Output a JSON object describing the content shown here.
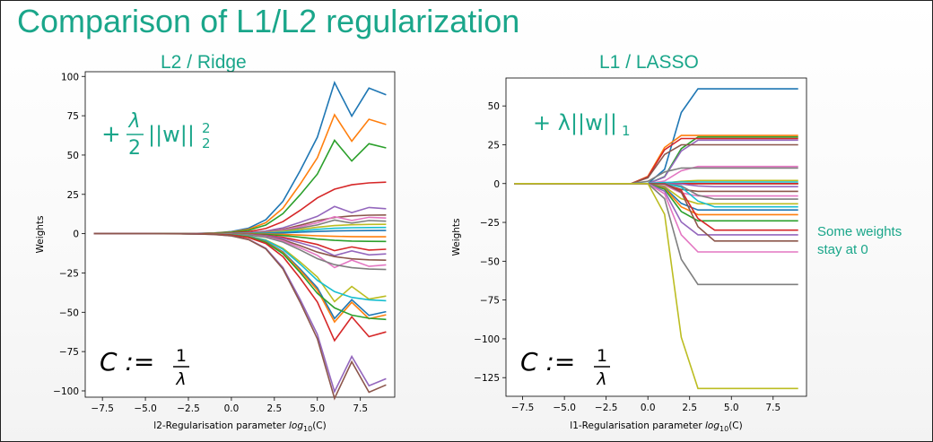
{
  "slide": {
    "title": "Comparison of L1/L2 regularization",
    "side_note_lines": [
      "Some weights",
      "stay at 0"
    ]
  },
  "colors": {
    "title": "#1aa68a",
    "formula": "#1aa68a",
    "series": [
      "#1f77b4",
      "#ff7f0e",
      "#2ca02c",
      "#d62728",
      "#9467bd",
      "#8c564b",
      "#e377c2",
      "#7f7f7f",
      "#bcbd22",
      "#17becf"
    ]
  },
  "chart_data": [
    {
      "type": "line",
      "panel_title": "L2 / Ridge",
      "formula": "+ λ/2 ||w||₂²",
      "formula_main": "+",
      "formula_frac_num": "λ",
      "formula_frac_den": "2",
      "formula_norm": "||w||",
      "formula_sup": "2",
      "formula_sub": "2",
      "annotation": "C := 1/λ",
      "annotation_lhs": "C :=",
      "annotation_num": "1",
      "annotation_den": "λ",
      "xlabel": "l2-Regularisation parameter log10(C)",
      "xlabel_prefix": "l2-Regularisation parameter ",
      "xlabel_log": "log",
      "xlabel_sub": "10",
      "xlabel_suffix": "(C)",
      "ylabel": "Weights",
      "xlim": [
        -8.5,
        9.5
      ],
      "ylim": [
        -104,
        103
      ],
      "xticks": [
        -7.5,
        -5.0,
        -2.5,
        0.0,
        2.5,
        5.0,
        7.5
      ],
      "xtick_labels": [
        "−7.5",
        "−5.0",
        "−2.5",
        "0.0",
        "2.5",
        "5.0",
        "7.5"
      ],
      "yticks": [
        100,
        75,
        50,
        25,
        0,
        -25,
        -50,
        -75,
        -100
      ],
      "ytick_labels": [
        "100",
        "75",
        "50",
        "25",
        "0",
        "−25",
        "−50",
        "−75",
        "−100"
      ],
      "grid": false,
      "x": [
        -8,
        -7,
        -6,
        -5,
        -4,
        -3,
        -2,
        -1,
        0,
        1,
        2,
        3,
        4,
        5,
        6,
        7,
        8,
        9
      ],
      "series_finals": [
        89,
        70,
        55,
        33,
        16,
        12,
        10,
        8,
        6,
        4,
        2,
        -2,
        -5,
        -10,
        -13,
        -17,
        -20,
        -23,
        -40,
        -43,
        -50,
        -52,
        -55,
        -63,
        -93,
        -97
      ],
      "series_zigzag": [
        1,
        1,
        1,
        0,
        1,
        0,
        1,
        1,
        0,
        1,
        0,
        1,
        0,
        1,
        1,
        0,
        1,
        0,
        1,
        0,
        1,
        1,
        0,
        1,
        1,
        1
      ]
    },
    {
      "type": "line",
      "panel_title": "L1 / LASSO",
      "formula": "+ λ||w||₁",
      "formula_main": "+ λ||w||",
      "formula_sub": "1",
      "annotation": "C := 1/λ",
      "annotation_lhs": "C :=",
      "annotation_num": "1",
      "annotation_den": "λ",
      "xlabel": "l1-Regularisation parameter log10(C)",
      "xlabel_prefix": "l1-Regularisation parameter ",
      "xlabel_log": "log",
      "xlabel_sub": "10",
      "xlabel_suffix": "(C)",
      "ylabel": "Weights",
      "xlim": [
        -8.5,
        9.5
      ],
      "ylim": [
        -137,
        68
      ],
      "xticks": [
        -7.5,
        -5.0,
        -2.5,
        0.0,
        2.5,
        5.0,
        7.5
      ],
      "xtick_labels": [
        "−7.5",
        "−5.0",
        "−2.5",
        "0.0",
        "2.5",
        "5.0",
        "7.5"
      ],
      "yticks": [
        50,
        25,
        0,
        -25,
        -50,
        -75,
        -100,
        -125
      ],
      "ytick_labels": [
        "50",
        "25",
        "0",
        "−25",
        "−50",
        "−75",
        "−100",
        "−125"
      ],
      "grid": false,
      "x": [
        -8,
        -7,
        -6,
        -5,
        -4,
        -3,
        -2,
        -1,
        0,
        1,
        2,
        3,
        4,
        5,
        6,
        7,
        8,
        9
      ],
      "series_finals": [
        61,
        31,
        30,
        29,
        28,
        25,
        11,
        10,
        2,
        1,
        0,
        0,
        0,
        0,
        -2,
        -5,
        -8,
        -10,
        -13,
        -15,
        -17,
        -20,
        -24,
        -30,
        -33,
        -37,
        -44,
        -65,
        -132
      ],
      "series_onset": [
        2,
        1,
        2,
        1,
        2,
        1,
        2,
        1,
        2,
        1,
        9,
        9,
        9,
        9,
        3,
        2,
        2,
        3,
        2,
        3,
        2,
        2,
        2,
        3,
        2,
        3,
        2,
        2,
        2
      ]
    }
  ]
}
